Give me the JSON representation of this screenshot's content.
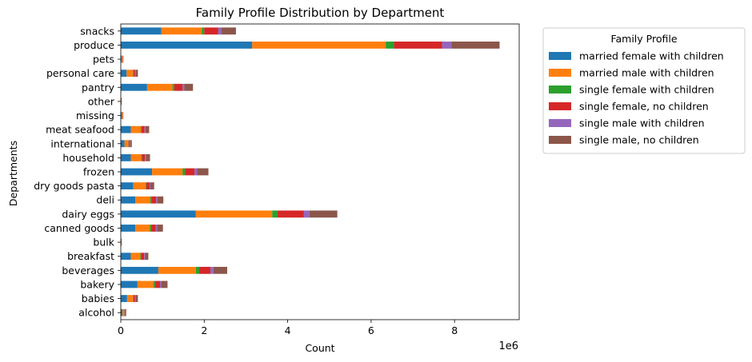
{
  "chart_data": {
    "type": "bar",
    "orientation": "horizontal",
    "stacked": true,
    "title": "Family Profile Distribution by Department",
    "xlabel": "Count",
    "ylabel": "Departments",
    "x_offset_label": "1e6",
    "x_scale": 1000000,
    "xlim": [
      0,
      9550000
    ],
    "x_ticks": [
      0,
      2000000,
      4000000,
      6000000,
      8000000
    ],
    "x_tick_labels": [
      "0",
      "2",
      "4",
      "6",
      "8"
    ],
    "grid": false,
    "legend_title": "Family Profile",
    "legend_position": "outside-top-right",
    "categories": [
      "alcohol",
      "babies",
      "bakery",
      "beverages",
      "breakfast",
      "bulk",
      "canned goods",
      "dairy eggs",
      "deli",
      "dry goods pasta",
      "frozen",
      "household",
      "international",
      "meat seafood",
      "missing",
      "other",
      "pantry",
      "personal care",
      "pets",
      "produce",
      "snacks"
    ],
    "series": [
      {
        "name": "married female with children",
        "color": "#1f77b4",
        "values": [
          40000,
          150000,
          400000,
          900000,
          240000,
          10000,
          350000,
          1800000,
          350000,
          300000,
          750000,
          240000,
          90000,
          240000,
          20000,
          10000,
          630000,
          140000,
          20000,
          3150000,
          970000
        ]
      },
      {
        "name": "married male with children",
        "color": "#ff7f0e",
        "values": [
          40000,
          140000,
          380000,
          900000,
          230000,
          10000,
          350000,
          1830000,
          360000,
          290000,
          730000,
          250000,
          90000,
          240000,
          20000,
          10000,
          610000,
          150000,
          20000,
          3200000,
          970000
        ]
      },
      {
        "name": "single female with children",
        "color": "#2ca02c",
        "values": [
          5000,
          10000,
          40000,
          80000,
          20000,
          1000,
          30000,
          130000,
          30000,
          20000,
          60000,
          20000,
          7000,
          20000,
          2000,
          1000,
          40000,
          10000,
          2000,
          200000,
          60000
        ]
      },
      {
        "name": "single female, no children",
        "color": "#d62728",
        "values": [
          10000,
          40000,
          120000,
          270000,
          70000,
          2000,
          110000,
          630000,
          110000,
          80000,
          230000,
          70000,
          30000,
          70000,
          5000,
          2000,
          200000,
          40000,
          8000,
          1150000,
          330000
        ]
      },
      {
        "name": "single male with children",
        "color": "#9467bd",
        "values": [
          5000,
          10000,
          30000,
          70000,
          20000,
          1000,
          30000,
          130000,
          30000,
          20000,
          60000,
          20000,
          7000,
          20000,
          2000,
          1000,
          40000,
          10000,
          2000,
          230000,
          80000
        ]
      },
      {
        "name": "single male, no children",
        "color": "#8c564b",
        "values": [
          30000,
          60000,
          150000,
          330000,
          80000,
          3000,
          140000,
          670000,
          140000,
          90000,
          270000,
          100000,
          40000,
          90000,
          10000,
          3000,
          210000,
          60000,
          10000,
          1150000,
          350000
        ]
      }
    ]
  }
}
